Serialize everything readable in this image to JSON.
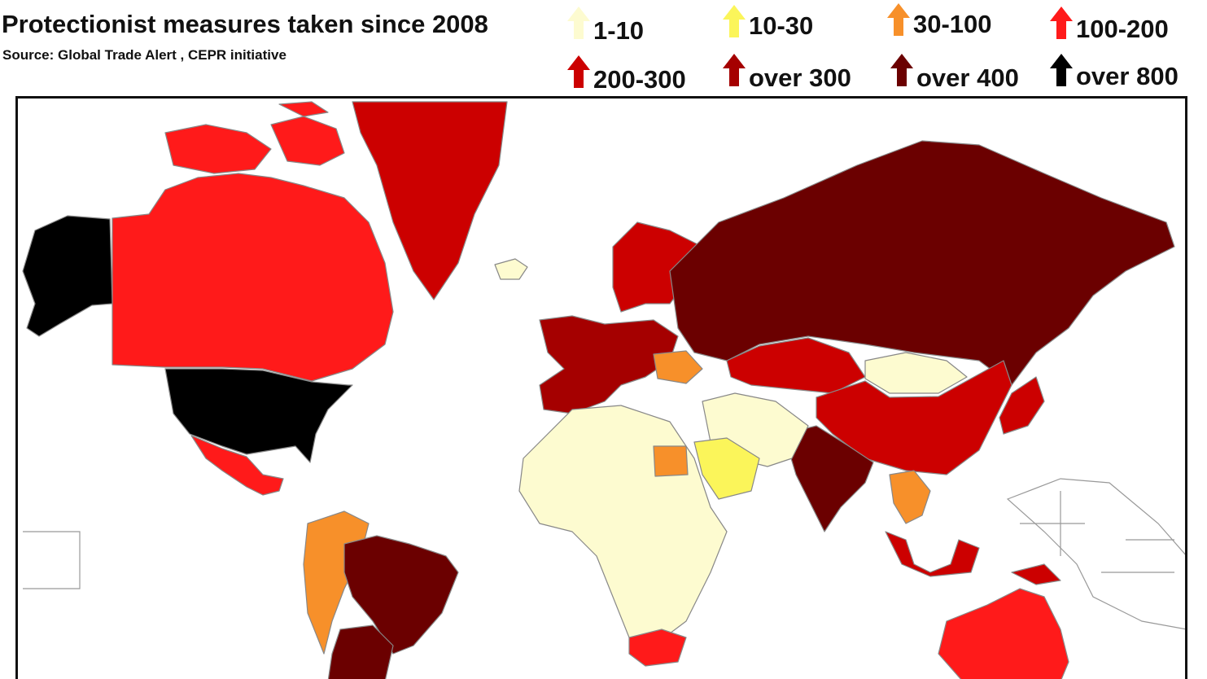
{
  "title": "Protectionist measures taken since 2008",
  "subtitle": "Source: Global Trade Alert , CEPR initiative",
  "legend": [
    {
      "label": "1-10",
      "color": "#fdfbd0",
      "icon": "arrow-up-icon"
    },
    {
      "label": "10-30",
      "color": "#fbf55a",
      "icon": "arrow-up-icon"
    },
    {
      "label": "30-100",
      "color": "#f7902a",
      "icon": "arrow-up-icon"
    },
    {
      "label": "100-200",
      "color": "#ff1a1a",
      "icon": "arrow-up-icon"
    },
    {
      "label": "200-300",
      "color": "#cc0000",
      "icon": "arrow-up-icon"
    },
    {
      "label": "over 300",
      "color": "#a50000",
      "icon": "arrow-up-icon"
    },
    {
      "label": "over 400",
      "color": "#6b0000",
      "icon": "arrow-up-icon"
    },
    {
      "label": "over 800",
      "color": "#000000",
      "icon": "arrow-up-icon"
    }
  ],
  "regions": {
    "alaska": "#000000",
    "canada": "#ff1a1a",
    "usa": "#000000",
    "mexico": "#ff1a1a",
    "greenland": "#cc0000",
    "iceland": "#fdfbd0",
    "scandinavia": "#cc0000",
    "western_europe": "#a50000",
    "ukraine": "#f7902a",
    "russia": "#6b0000",
    "kazakhstan": "#cc0000",
    "mongolia": "#fdfbd0",
    "china": "#cc0000",
    "india": "#6b0000",
    "japan": "#cc0000",
    "southeast_asia": "#f7902a",
    "indonesia": "#cc0000",
    "middle_east": "#fdfbd0",
    "saudi_arabia": "#fbf55a",
    "egypt": "#f7902a",
    "africa": "#fdfbd0",
    "south_africa": "#ff1a1a",
    "brazil": "#6b0000",
    "andean": "#f7902a",
    "argentina": "#6b0000",
    "australia": "#ff1a1a"
  }
}
